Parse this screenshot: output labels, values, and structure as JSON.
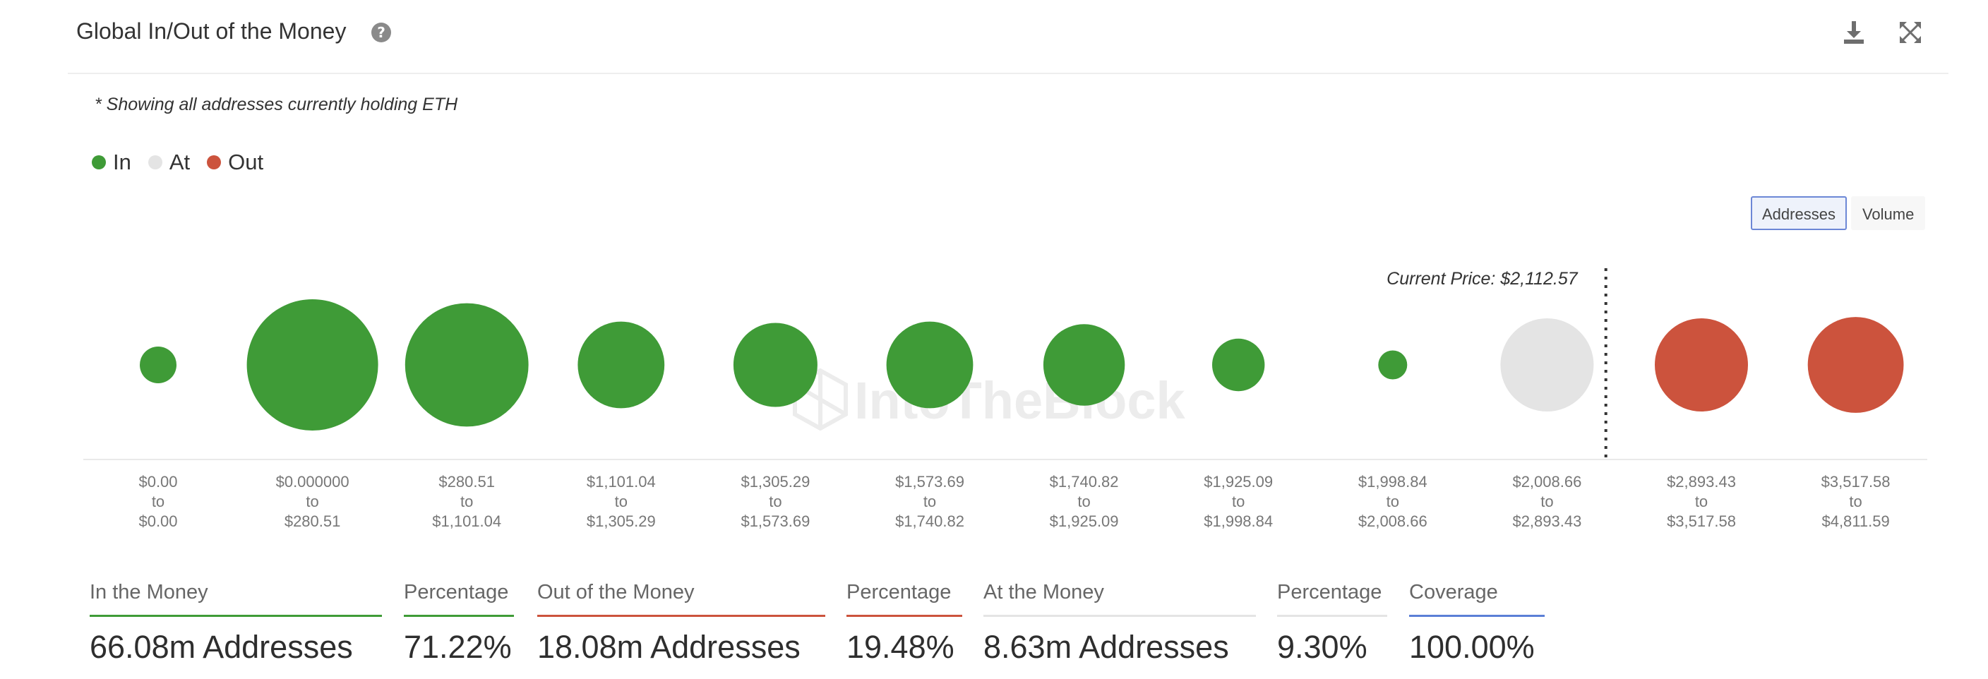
{
  "header": {
    "title": "Global In/Out of the Money",
    "help_icon": "question-circle-icon",
    "download_icon": "download-icon",
    "expand_icon": "expand-icon"
  },
  "note": "* Showing all addresses currently holding ETH",
  "legend": [
    {
      "label": "In",
      "color": "#3f9b37"
    },
    {
      "label": "At",
      "color": "#e4e4e4"
    },
    {
      "label": "Out",
      "color": "#cc533d"
    }
  ],
  "toggle": {
    "addresses_label": "Addresses",
    "volume_label": "Volume",
    "active": "Addresses"
  },
  "watermark": "IntoTheBlock",
  "chart_data": {
    "type": "bubble",
    "current_price_label": "Current Price: $2,112.57",
    "current_price_between_buckets": [
      9,
      10
    ],
    "bucket_connector": "to",
    "buckets": [
      {
        "from": "$0.00",
        "to": "$0.00",
        "status": "in",
        "relative_size": 0.28
      },
      {
        "from": "$0.000000",
        "to": "$280.51",
        "status": "in",
        "relative_size": 1.0
      },
      {
        "from": "$280.51",
        "to": "$1,101.04",
        "status": "in",
        "relative_size": 0.94
      },
      {
        "from": "$1,101.04",
        "to": "$1,305.29",
        "status": "in",
        "relative_size": 0.66
      },
      {
        "from": "$1,305.29",
        "to": "$1,573.69",
        "status": "in",
        "relative_size": 0.64
      },
      {
        "from": "$1,573.69",
        "to": "$1,740.82",
        "status": "in",
        "relative_size": 0.66
      },
      {
        "from": "$1,740.82",
        "to": "$1,925.09",
        "status": "in",
        "relative_size": 0.62
      },
      {
        "from": "$1,925.09",
        "to": "$1,998.84",
        "status": "in",
        "relative_size": 0.4
      },
      {
        "from": "$1,998.84",
        "to": "$2,008.66",
        "status": "in",
        "relative_size": 0.22
      },
      {
        "from": "$2,008.66",
        "to": "$2,893.43",
        "status": "at",
        "relative_size": 0.71
      },
      {
        "from": "$2,893.43",
        "to": "$3,517.58",
        "status": "out",
        "relative_size": 0.71
      },
      {
        "from": "$3,517.58",
        "to": "$4,811.59",
        "status": "out",
        "relative_size": 0.73
      }
    ]
  },
  "stats": [
    {
      "heading": "In the Money",
      "value": "66.08m Addresses",
      "line_color": "#3f9b37"
    },
    {
      "heading": "Percentage",
      "value": "71.22%",
      "line_color": "#3f9b37"
    },
    {
      "heading": "Out of the Money",
      "value": "18.08m Addresses",
      "line_color": "#cc533d"
    },
    {
      "heading": "Percentage",
      "value": "19.48%",
      "line_color": "#cc533d"
    },
    {
      "heading": "At the Money",
      "value": "8.63m Addresses",
      "line_color": "#e4e4e4"
    },
    {
      "heading": "Percentage",
      "value": "9.30%",
      "line_color": "#e4e4e4"
    },
    {
      "heading": "Coverage",
      "value": "100.00%",
      "line_color": "#5b7fd6"
    }
  ]
}
